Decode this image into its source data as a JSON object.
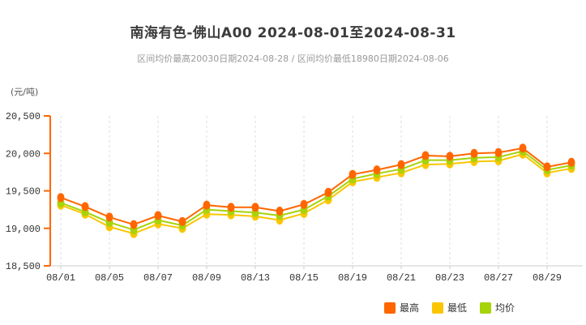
{
  "header": {
    "title": "南海有色-佛山A00 2024-08-01至2024-08-31",
    "subtitle": "区间均价最高20030日期2024-08-28 / 区间均价最低18980日期2024-08-06"
  },
  "chart_data": {
    "type": "line",
    "title": "南海有色-佛山A00 2024-08-01至2024-08-31",
    "subtitle": "区间均价最高20030日期2024-08-28 / 区间均价最低18980日期2024-08-06",
    "unit_label": "(元/吨)",
    "xlabel": "",
    "ylabel": "元/吨",
    "ylim": [
      18500,
      20500
    ],
    "y_ticks": [
      18500,
      19000,
      19500,
      20000,
      20500
    ],
    "y_tick_labels": [
      "18,500",
      "19,000",
      "19,500",
      "20,000",
      "20,500"
    ],
    "x": [
      "08/01",
      "08/02",
      "08/05",
      "08/06",
      "08/07",
      "08/08",
      "08/09",
      "08/12",
      "08/13",
      "08/14",
      "08/15",
      "08/16",
      "08/19",
      "08/20",
      "08/21",
      "08/22",
      "08/23",
      "08/26",
      "08/27",
      "08/28",
      "08/29",
      "08/30"
    ],
    "x_label_every": 2,
    "x_tick_labels_shown": [
      "08/01",
      "08/05",
      "08/07",
      "08/09",
      "08/13",
      "08/15",
      "08/19",
      "08/21",
      "08/23",
      "08/27",
      "08/29"
    ],
    "grid": "vertical dashed gridlines at labeled x ticks only, no horizontal gridlines",
    "legend_position": "bottom-right",
    "series": [
      {
        "key": "max",
        "name": "最高",
        "color": "#ff6600",
        "z": 2,
        "values": [
          19410,
          19290,
          19150,
          19050,
          19170,
          19090,
          19310,
          19280,
          19280,
          19230,
          19320,
          19480,
          19720,
          19780,
          19850,
          19970,
          19960,
          20000,
          20010,
          20070,
          19820,
          19880
        ]
      },
      {
        "key": "min",
        "name": "最低",
        "color": "#f9c601",
        "z": 0,
        "values": [
          19310,
          19190,
          19020,
          18930,
          19060,
          19000,
          19190,
          19180,
          19160,
          19110,
          19200,
          19380,
          19620,
          19680,
          19740,
          19850,
          19860,
          19890,
          19900,
          19990,
          19740,
          19800
        ]
      },
      {
        "key": "avg",
        "name": "均价",
        "color": "#a6d30a",
        "z": 1,
        "values": [
          19340,
          19220,
          19080,
          18980,
          19110,
          19040,
          19250,
          19230,
          19210,
          19170,
          19250,
          19430,
          19660,
          19730,
          19790,
          19910,
          19910,
          19940,
          19950,
          20030,
          19780,
          19840
        ]
      }
    ],
    "colors": {
      "y_axis": "#ff6600",
      "x_axis": "#cccccc",
      "gridline": "#dddddd",
      "tick_label": "#333333"
    }
  }
}
